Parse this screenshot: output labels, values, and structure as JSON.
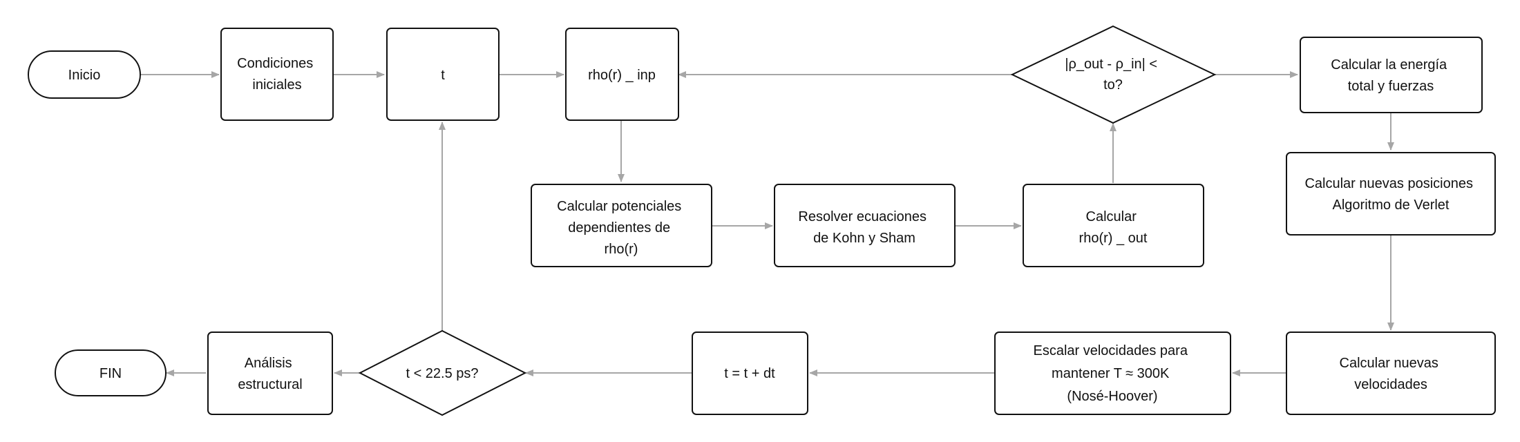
{
  "diagram": {
    "nodes": {
      "inicio": "Inicio",
      "condiciones": [
        "Condiciones",
        "iniciales"
      ],
      "t": "t",
      "rho_inp": "rho(r) _ inp",
      "convergencia": [
        "|ρ_out - ρ_in| <",
        "to?"
      ],
      "energia": [
        "Calcular la energía",
        "total y fuerzas"
      ],
      "potenciales": [
        "Calcular potenciales",
        "dependientes de",
        "rho(r)"
      ],
      "kohn_sham": [
        "Resolver ecuaciones",
        "de Kohn y Sham"
      ],
      "rho_out": [
        "Calcular",
        "rho(r) _ out"
      ],
      "posiciones": [
        "Calcular nuevas posiciones",
        "Algoritmo de Verlet"
      ],
      "velocidades": [
        "Calcular nuevas",
        "velocidades"
      ],
      "escalar": [
        "Escalar velocidades para",
        "mantener T ≈ 300K",
        "(Nosé-Hoover)"
      ],
      "t_dt": "t = t + dt",
      "tiempo": "t < 22.5 ps?",
      "analisis": [
        "Análisis",
        "estructural"
      ],
      "fin": "FIN"
    }
  }
}
